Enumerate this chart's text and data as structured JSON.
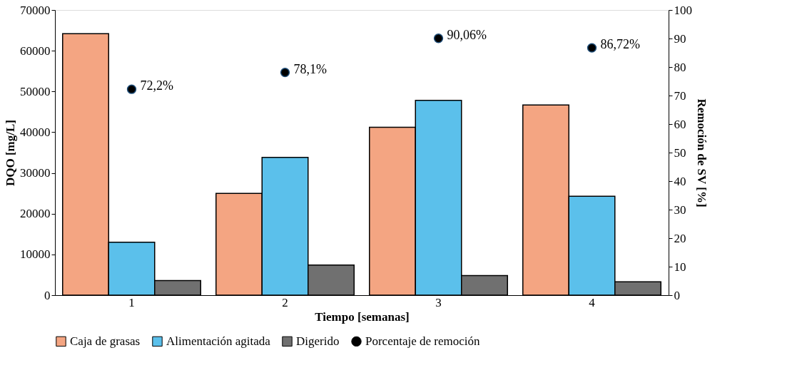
{
  "chart_data": {
    "type": "bar",
    "xlabel": "Tiempo [semanas]",
    "ylabel": "DQO [mg/L]",
    "y2label": "Remoción de SV [%]",
    "categories": [
      "1",
      "2",
      "3",
      "4"
    ],
    "series": [
      {
        "name": "Caja de grasas",
        "color": "#f4a582",
        "values": [
          64200,
          25000,
          41200,
          46700
        ]
      },
      {
        "name": "Alimentación agitada",
        "color": "#5bc0eb",
        "values": [
          13000,
          33800,
          47800,
          24300
        ]
      },
      {
        "name": "Digerido",
        "color": "#707070",
        "values": [
          3600,
          7400,
          4800,
          3300
        ]
      },
      {
        "name": "Porcentaje de remoción",
        "type": "scatter",
        "axis": "y2",
        "color": "#000000",
        "values": [
          72.2,
          78.1,
          90.06,
          86.72
        ],
        "value_labels": [
          "72,2%",
          "78,1%",
          "90,06%",
          "86,72%"
        ]
      }
    ],
    "ylim": [
      0,
      70000
    ],
    "yticks": [
      0,
      10000,
      20000,
      30000,
      40000,
      50000,
      60000,
      70000
    ],
    "y2lim": [
      0,
      100
    ],
    "y2ticks": [
      0,
      10,
      20,
      30,
      40,
      50,
      60,
      70,
      80,
      90,
      100
    ],
    "marker": "circle",
    "grid": false,
    "legend": "bottom"
  }
}
